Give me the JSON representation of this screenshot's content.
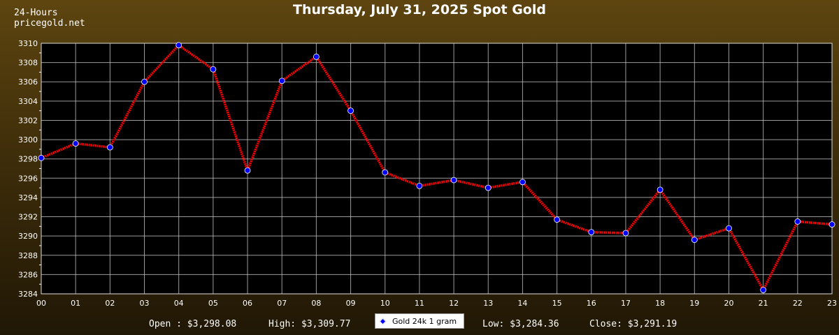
{
  "header": {
    "period_label": "24-Hours",
    "site_label": "pricegold.net",
    "title": "Thursday, July 31, 2025 Spot Gold"
  },
  "stats": {
    "open": "Open : $3,298.08",
    "high": "High: $3,309.77",
    "low": "Low: $3,284.36",
    "close": "Close: $3,291.19"
  },
  "legend": {
    "label": "Gold 24k 1 gram"
  },
  "colors": {
    "line": "#ff0000",
    "marker": "#0000ff",
    "plot_background": "#000000",
    "grid": "#cccccc"
  },
  "chart_data": {
    "type": "line",
    "title": "Thursday, July 31, 2025 Spot Gold",
    "xlabel": "",
    "ylabel": "",
    "categories": [
      "00",
      "01",
      "02",
      "03",
      "04",
      "05",
      "06",
      "07",
      "08",
      "09",
      "10",
      "11",
      "12",
      "13",
      "14",
      "15",
      "16",
      "17",
      "18",
      "19",
      "20",
      "21",
      "22",
      "23"
    ],
    "series": [
      {
        "name": "Gold 24k 1 gram",
        "values": [
          3298.1,
          3299.6,
          3299.2,
          3306.0,
          3309.8,
          3307.3,
          3296.8,
          3306.1,
          3308.6,
          3303.0,
          3296.6,
          3295.2,
          3295.8,
          3295.0,
          3295.6,
          3291.7,
          3290.4,
          3290.3,
          3294.8,
          3289.6,
          3290.8,
          3284.4,
          3291.5,
          3291.2
        ]
      }
    ],
    "ylim": [
      3284,
      3310
    ],
    "yticks": [
      3284,
      3286,
      3288,
      3290,
      3292,
      3294,
      3296,
      3298,
      3300,
      3302,
      3304,
      3306,
      3308,
      3310
    ],
    "grid": true,
    "legend_position": "bottom-center"
  }
}
